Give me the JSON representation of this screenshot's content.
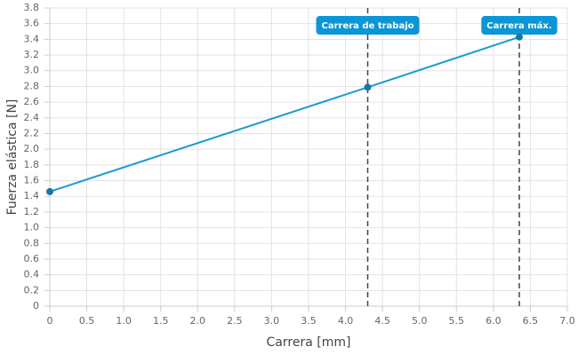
{
  "chart_data": {
    "type": "line",
    "xlabel": "Carrera [mm]",
    "ylabel": "Fuerza elástica [N]",
    "x": [
      0,
      4.3,
      6.35
    ],
    "values": [
      1.46,
      2.79,
      3.43
    ],
    "color": "#1a9ad6",
    "marker_color": "#1577a8",
    "xlim": [
      0,
      7
    ],
    "xticks": [
      0,
      0.5,
      {
        "value": 1,
        "label": "1.0"
      },
      1.5,
      {
        "value": 2,
        "label": "2.0"
      },
      2.5,
      {
        "value": 3,
        "label": "3.0"
      },
      3.5,
      {
        "value": 4,
        "label": "4.0"
      },
      4.5,
      {
        "value": 5,
        "label": "5.0"
      },
      5.5,
      {
        "value": 6,
        "label": "6.0"
      },
      6.5,
      {
        "value": 7,
        "label": "7.0"
      }
    ],
    "ylim": [
      0,
      3.8
    ],
    "yticks": [
      0,
      0.2,
      0.4,
      0.6,
      0.8,
      {
        "value": 1,
        "label": "1.0"
      },
      1.2,
      1.4,
      1.6,
      1.8,
      {
        "value": 2,
        "label": "2.0"
      },
      2.2,
      2.4,
      2.6,
      2.8,
      {
        "value": 3,
        "label": "3.0"
      },
      3.2,
      3.4,
      3.6,
      3.8
    ],
    "grid": true,
    "annotations": [
      {
        "x": 4.3,
        "label": "Carrera de trabajo"
      },
      {
        "x": 6.35,
        "label": "Carrera máx."
      }
    ],
    "annotation_color": "#0b96d8"
  }
}
